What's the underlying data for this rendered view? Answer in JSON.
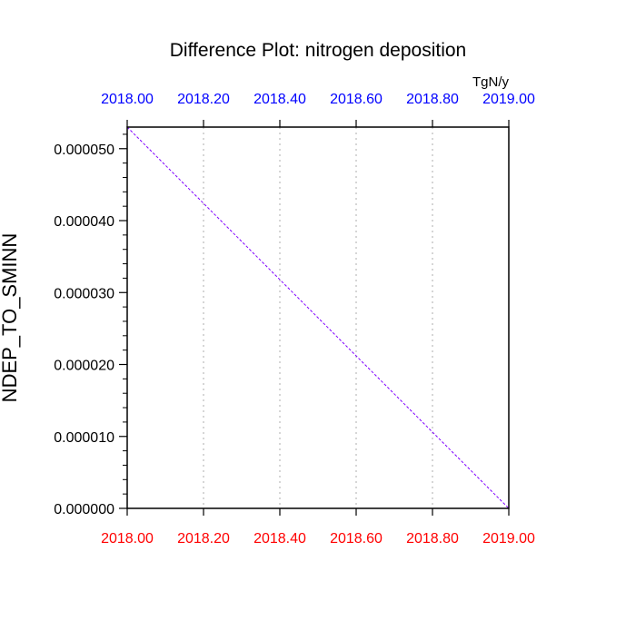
{
  "chart_data": {
    "type": "line",
    "title": "Difference Plot: nitrogen deposition",
    "units": "TgN/y",
    "ylabel": "NDEP_TO_SMINN",
    "xlim": [
      2018.0,
      2019.0
    ],
    "ylim": [
      0.0,
      5.3e-05
    ],
    "x_ticks": [
      2018.0,
      2018.2,
      2018.4,
      2018.6,
      2018.8,
      2019.0
    ],
    "x_tick_labels_bottom": [
      "2018.00",
      "2018.20",
      "2018.40",
      "2018.60",
      "2018.80",
      "2019.00"
    ],
    "x_tick_labels_top": [
      "2018.00",
      "2018.20",
      "2018.40",
      "2018.60",
      "2018.80",
      "2019.00"
    ],
    "y_ticks": [
      0.0,
      1e-05,
      2e-05,
      3e-05,
      4e-05,
      5e-05
    ],
    "y_tick_labels": [
      "0.000000",
      "0.000010",
      "0.000020",
      "0.000030",
      "0.000040",
      "0.000050"
    ],
    "grid": "vertical dotted",
    "series": [
      {
        "x": [
          2018.0,
          2019.0
        ],
        "y": [
          5.3e-05,
          0.0
        ],
        "color": "#8000ff",
        "dash": "dashed"
      }
    ],
    "colors": {
      "bottom_tick_labels": "#ff0000",
      "top_tick_labels": "#0000ff",
      "axis": "#000000",
      "grid": "#c8c8c8"
    }
  }
}
